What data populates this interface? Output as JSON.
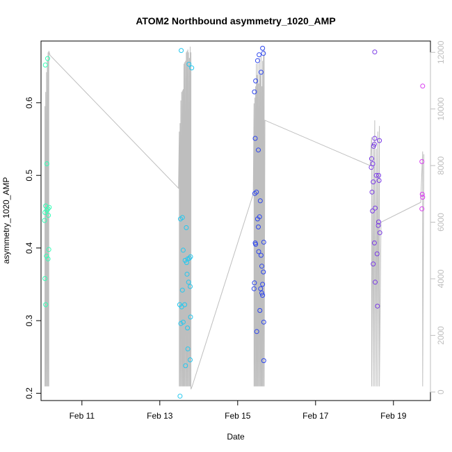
{
  "chart_data": {
    "type": "scatter",
    "title": "ATOM2 Northbound asymmetry_1020_AMP",
    "xlabel": "Date",
    "ylabel": "asymmetry_1020_AMP",
    "x_unit": "days (February, fractional day-of-month)",
    "xlim": [
      9.95,
      19.95
    ],
    "ylim": [
      0.19,
      0.685
    ],
    "x_ticks": [
      {
        "value": 11,
        "label": "Feb 11"
      },
      {
        "value": 13,
        "label": "Feb 13"
      },
      {
        "value": 15,
        "label": "Feb 15"
      },
      {
        "value": 17,
        "label": "Feb 17"
      },
      {
        "value": 19,
        "label": "Feb 19"
      }
    ],
    "y_ticks": [
      0.2,
      0.3,
      0.4,
      0.5,
      0.6
    ],
    "y2_ticks": [
      0,
      2000,
      4000,
      6000,
      8000,
      10000,
      12000
    ],
    "y2lim": [
      -300,
      12400
    ],
    "grid": false,
    "legend": "none",
    "colors": {
      "cluster1": "#33ffb5",
      "cluster2": "#22c8f0",
      "cluster3": "#2b44ee",
      "cluster4": "#7a3ae6",
      "cluster5": "#d838f0",
      "secondary_line": "#bebebe",
      "axis": "#000000",
      "right_axis": "#bebebe"
    },
    "points": [
      {
        "x": 10.12,
        "y": 0.661,
        "color": "#33ffb5"
      },
      {
        "x": 10.06,
        "y": 0.652,
        "color": "#33ffb5"
      },
      {
        "x": 10.1,
        "y": 0.516,
        "color": "#33ffb5"
      },
      {
        "x": 10.07,
        "y": 0.458,
        "color": "#33ffb5"
      },
      {
        "x": 10.16,
        "y": 0.456,
        "color": "#33ffb5"
      },
      {
        "x": 10.13,
        "y": 0.454,
        "color": "#33ffb5"
      },
      {
        "x": 10.1,
        "y": 0.452,
        "color": "#33ffb5"
      },
      {
        "x": 10.05,
        "y": 0.449,
        "color": "#33ffb5"
      },
      {
        "x": 10.14,
        "y": 0.445,
        "color": "#33ffb5"
      },
      {
        "x": 10.04,
        "y": 0.438,
        "color": "#33ffb5"
      },
      {
        "x": 10.15,
        "y": 0.398,
        "color": "#33ffb5"
      },
      {
        "x": 10.09,
        "y": 0.389,
        "color": "#33ffb5"
      },
      {
        "x": 10.13,
        "y": 0.385,
        "color": "#33ffb5"
      },
      {
        "x": 10.05,
        "y": 0.358,
        "color": "#33ffb5"
      },
      {
        "x": 10.07,
        "y": 0.322,
        "color": "#33ffb5"
      },
      {
        "x": 13.55,
        "y": 0.672,
        "color": "#22c8f0"
      },
      {
        "x": 13.75,
        "y": 0.653,
        "color": "#22c8f0"
      },
      {
        "x": 13.82,
        "y": 0.648,
        "color": "#22c8f0"
      },
      {
        "x": 13.53,
        "y": 0.44,
        "color": "#22c8f0"
      },
      {
        "x": 13.58,
        "y": 0.442,
        "color": "#22c8f0"
      },
      {
        "x": 13.68,
        "y": 0.428,
        "color": "#22c8f0"
      },
      {
        "x": 13.6,
        "y": 0.397,
        "color": "#22c8f0"
      },
      {
        "x": 13.79,
        "y": 0.388,
        "color": "#22c8f0"
      },
      {
        "x": 13.72,
        "y": 0.385,
        "color": "#22c8f0"
      },
      {
        "x": 13.65,
        "y": 0.383,
        "color": "#22c8f0"
      },
      {
        "x": 13.76,
        "y": 0.386,
        "color": "#22c8f0"
      },
      {
        "x": 13.69,
        "y": 0.38,
        "color": "#22c8f0"
      },
      {
        "x": 13.7,
        "y": 0.364,
        "color": "#22c8f0"
      },
      {
        "x": 13.74,
        "y": 0.353,
        "color": "#22c8f0"
      },
      {
        "x": 13.78,
        "y": 0.347,
        "color": "#22c8f0"
      },
      {
        "x": 13.58,
        "y": 0.342,
        "color": "#22c8f0"
      },
      {
        "x": 13.51,
        "y": 0.322,
        "color": "#22c8f0"
      },
      {
        "x": 13.56,
        "y": 0.319,
        "color": "#22c8f0"
      },
      {
        "x": 13.64,
        "y": 0.322,
        "color": "#22c8f0"
      },
      {
        "x": 13.79,
        "y": 0.305,
        "color": "#22c8f0"
      },
      {
        "x": 13.6,
        "y": 0.298,
        "color": "#22c8f0"
      },
      {
        "x": 13.54,
        "y": 0.296,
        "color": "#22c8f0"
      },
      {
        "x": 13.71,
        "y": 0.29,
        "color": "#22c8f0"
      },
      {
        "x": 13.72,
        "y": 0.261,
        "color": "#22c8f0"
      },
      {
        "x": 13.78,
        "y": 0.246,
        "color": "#22c8f0"
      },
      {
        "x": 13.66,
        "y": 0.238,
        "color": "#22c8f0"
      },
      {
        "x": 13.52,
        "y": 0.196,
        "color": "#22c8f0"
      },
      {
        "x": 15.64,
        "y": 0.675,
        "color": "#2b44ee"
      },
      {
        "x": 15.55,
        "y": 0.666,
        "color": "#2b44ee"
      },
      {
        "x": 15.66,
        "y": 0.668,
        "color": "#2b44ee"
      },
      {
        "x": 15.51,
        "y": 0.658,
        "color": "#2b44ee"
      },
      {
        "x": 15.6,
        "y": 0.642,
        "color": "#2b44ee"
      },
      {
        "x": 15.46,
        "y": 0.63,
        "color": "#2b44ee"
      },
      {
        "x": 15.43,
        "y": 0.615,
        "color": "#2b44ee"
      },
      {
        "x": 15.45,
        "y": 0.551,
        "color": "#2b44ee"
      },
      {
        "x": 15.53,
        "y": 0.535,
        "color": "#2b44ee"
      },
      {
        "x": 15.48,
        "y": 0.477,
        "color": "#2b44ee"
      },
      {
        "x": 15.44,
        "y": 0.475,
        "color": "#2b44ee"
      },
      {
        "x": 15.58,
        "y": 0.465,
        "color": "#2b44ee"
      },
      {
        "x": 15.56,
        "y": 0.443,
        "color": "#2b44ee"
      },
      {
        "x": 15.51,
        "y": 0.44,
        "color": "#2b44ee"
      },
      {
        "x": 15.53,
        "y": 0.429,
        "color": "#2b44ee"
      },
      {
        "x": 15.45,
        "y": 0.407,
        "color": "#2b44ee"
      },
      {
        "x": 15.46,
        "y": 0.405,
        "color": "#2b44ee"
      },
      {
        "x": 15.67,
        "y": 0.408,
        "color": "#2b44ee"
      },
      {
        "x": 15.54,
        "y": 0.395,
        "color": "#2b44ee"
      },
      {
        "x": 15.6,
        "y": 0.39,
        "color": "#2b44ee"
      },
      {
        "x": 15.62,
        "y": 0.375,
        "color": "#2b44ee"
      },
      {
        "x": 15.66,
        "y": 0.367,
        "color": "#2b44ee"
      },
      {
        "x": 15.43,
        "y": 0.352,
        "color": "#2b44ee"
      },
      {
        "x": 15.64,
        "y": 0.35,
        "color": "#2b44ee"
      },
      {
        "x": 15.42,
        "y": 0.344,
        "color": "#2b44ee"
      },
      {
        "x": 15.59,
        "y": 0.344,
        "color": "#2b44ee"
      },
      {
        "x": 15.62,
        "y": 0.338,
        "color": "#2b44ee"
      },
      {
        "x": 15.64,
        "y": 0.335,
        "color": "#2b44ee"
      },
      {
        "x": 15.57,
        "y": 0.314,
        "color": "#2b44ee"
      },
      {
        "x": 15.67,
        "y": 0.298,
        "color": "#2b44ee"
      },
      {
        "x": 15.49,
        "y": 0.285,
        "color": "#2b44ee"
      },
      {
        "x": 15.67,
        "y": 0.245,
        "color": "#2b44ee"
      },
      {
        "x": 18.52,
        "y": 0.67,
        "color": "#7a3ae6"
      },
      {
        "x": 18.49,
        "y": 0.54,
        "color": "#7a3ae6"
      },
      {
        "x": 18.52,
        "y": 0.551,
        "color": "#7a3ae6"
      },
      {
        "x": 18.51,
        "y": 0.543,
        "color": "#7a3ae6"
      },
      {
        "x": 18.64,
        "y": 0.548,
        "color": "#7a3ae6"
      },
      {
        "x": 18.44,
        "y": 0.523,
        "color": "#7a3ae6"
      },
      {
        "x": 18.47,
        "y": 0.516,
        "color": "#7a3ae6"
      },
      {
        "x": 18.43,
        "y": 0.511,
        "color": "#7a3ae6"
      },
      {
        "x": 18.56,
        "y": 0.5,
        "color": "#7a3ae6"
      },
      {
        "x": 18.62,
        "y": 0.5,
        "color": "#7a3ae6"
      },
      {
        "x": 18.48,
        "y": 0.491,
        "color": "#7a3ae6"
      },
      {
        "x": 18.63,
        "y": 0.493,
        "color": "#7a3ae6"
      },
      {
        "x": 18.45,
        "y": 0.477,
        "color": "#7a3ae6"
      },
      {
        "x": 18.53,
        "y": 0.455,
        "color": "#7a3ae6"
      },
      {
        "x": 18.46,
        "y": 0.451,
        "color": "#7a3ae6"
      },
      {
        "x": 18.62,
        "y": 0.436,
        "color": "#7a3ae6"
      },
      {
        "x": 18.61,
        "y": 0.431,
        "color": "#7a3ae6"
      },
      {
        "x": 18.65,
        "y": 0.421,
        "color": "#7a3ae6"
      },
      {
        "x": 18.51,
        "y": 0.407,
        "color": "#7a3ae6"
      },
      {
        "x": 18.58,
        "y": 0.392,
        "color": "#7a3ae6"
      },
      {
        "x": 18.48,
        "y": 0.378,
        "color": "#7a3ae6"
      },
      {
        "x": 18.53,
        "y": 0.353,
        "color": "#7a3ae6"
      },
      {
        "x": 18.59,
        "y": 0.32,
        "color": "#7a3ae6"
      },
      {
        "x": 19.75,
        "y": 0.623,
        "color": "#d838f0"
      },
      {
        "x": 19.73,
        "y": 0.519,
        "color": "#d838f0"
      },
      {
        "x": 19.74,
        "y": 0.474,
        "color": "#d838f0"
      },
      {
        "x": 19.75,
        "y": 0.47,
        "color": "#d838f0"
      },
      {
        "x": 19.73,
        "y": 0.454,
        "color": "#d838f0"
      }
    ],
    "secondary_series": {
      "type": "line",
      "axis": "right",
      "color": "#bebebe",
      "x": [
        10.05,
        10.05,
        10.07,
        10.07,
        10.09,
        10.09,
        10.11,
        10.11,
        10.13,
        10.13,
        10.15,
        10.15,
        10.18,
        13.48,
        13.48,
        13.5,
        13.5,
        13.52,
        13.52,
        13.54,
        13.54,
        13.56,
        13.56,
        13.58,
        13.58,
        13.6,
        13.6,
        13.62,
        13.62,
        13.64,
        13.64,
        13.66,
        13.66,
        13.68,
        13.68,
        13.7,
        13.7,
        13.72,
        13.72,
        13.74,
        13.74,
        13.76,
        13.76,
        13.78,
        13.78,
        13.8,
        13.8,
        13.83,
        15.4,
        15.4,
        15.42,
        15.42,
        15.44,
        15.44,
        15.46,
        15.46,
        15.48,
        15.48,
        15.5,
        15.5,
        15.52,
        15.52,
        15.54,
        15.54,
        15.56,
        15.56,
        15.58,
        15.58,
        15.6,
        15.6,
        15.62,
        15.62,
        15.64,
        15.64,
        15.66,
        15.66,
        15.68,
        15.68,
        15.7,
        18.4,
        18.4,
        18.44,
        18.44,
        18.48,
        18.48,
        18.52,
        18.52,
        18.56,
        18.56,
        18.6,
        18.6,
        18.64,
        18.64,
        18.68,
        19.7,
        19.7,
        19.75,
        19.75,
        19.78
      ],
      "y": [
        200,
        10100,
        200,
        10600,
        200,
        11300,
        200,
        11700,
        200,
        12000,
        200,
        12050,
        11900,
        7200,
        7200,
        9200,
        200,
        9500,
        200,
        10300,
        200,
        10600,
        200,
        10650,
        200,
        10700,
        200,
        11600,
        200,
        11650,
        200,
        11700,
        200,
        12000,
        200,
        12050,
        200,
        12100,
        200,
        12000,
        200,
        11800,
        200,
        12200,
        200,
        12000,
        100,
        200,
        7000,
        7000,
        10200,
        200,
        10400,
        200,
        10800,
        200,
        11600,
        200,
        11200,
        200,
        11600,
        200,
        10900,
        200,
        11800,
        200,
        11200,
        200,
        11900,
        200,
        10800,
        200,
        11700,
        200,
        11900,
        200,
        12100,
        200,
        9600,
        8000,
        8000,
        9000,
        200,
        8800,
        200,
        9600,
        200,
        8600,
        200,
        9200,
        200,
        9400,
        200,
        6000,
        6700,
        6700,
        8500,
        200,
        8400
      ]
    }
  }
}
